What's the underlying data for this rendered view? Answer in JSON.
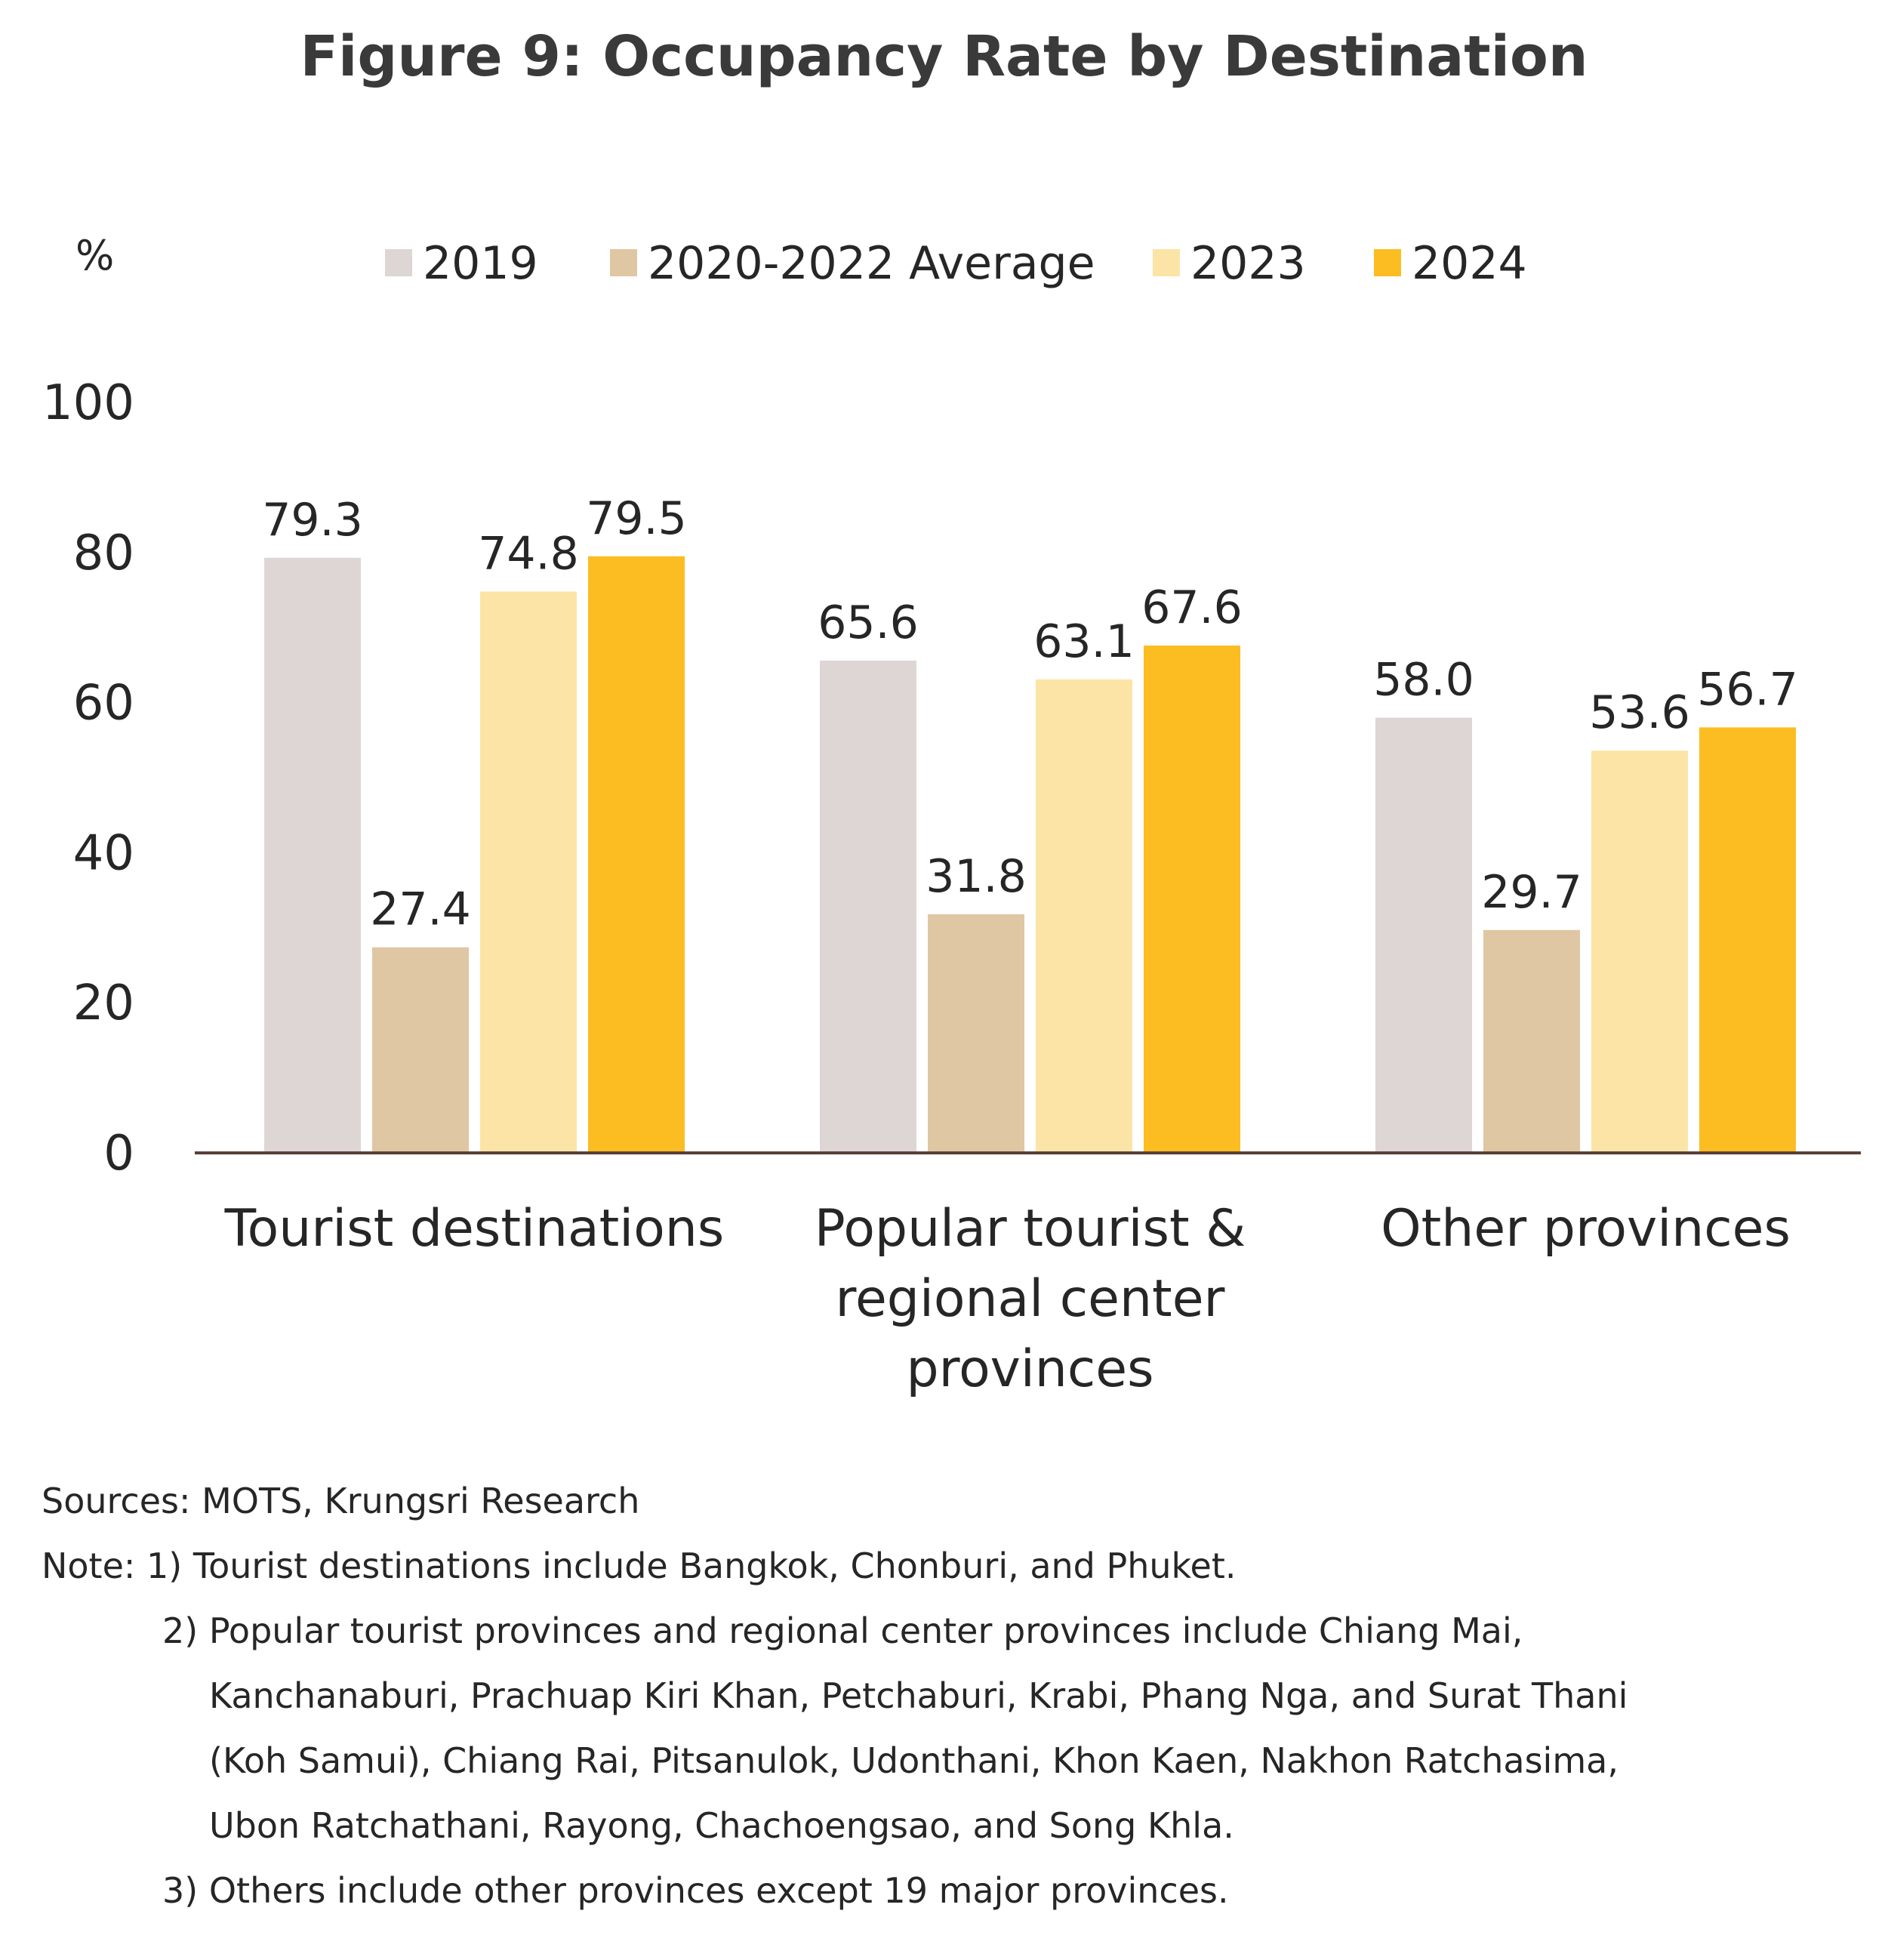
{
  "chart_data": {
    "type": "bar",
    "title": "Figure 9: Occupancy Rate by Destination",
    "ylabel": "%",
    "xlabel": "",
    "ylim": [
      0,
      100
    ],
    "yticks": [
      "0",
      "20",
      "40",
      "60",
      "80",
      "100"
    ],
    "grid": false,
    "legend_position": "top",
    "categories": [
      [
        "Tourist destinations"
      ],
      [
        "Popular tourist &",
        "regional center",
        "provinces"
      ],
      [
        "Other provinces"
      ]
    ],
    "series": [
      {
        "name": "2019",
        "color": "#ddd6d4",
        "values": [
          79.3,
          65.6,
          58.0
        ],
        "labels": [
          "79.3",
          "65.6",
          "58.0"
        ]
      },
      {
        "name": "2020-2022 Average",
        "color": "#dfc7a3",
        "values": [
          27.4,
          31.8,
          29.7
        ],
        "labels": [
          "27.4",
          "31.8",
          "29.7"
        ]
      },
      {
        "name": "2023",
        "color": "#fce4a6",
        "values": [
          74.8,
          63.1,
          53.6
        ],
        "labels": [
          "74.8",
          "63.1",
          "53.6"
        ]
      },
      {
        "name": "2024",
        "color": "#fbbd22",
        "values": [
          79.5,
          67.6,
          56.7
        ],
        "labels": [
          "79.5",
          "67.6",
          "56.7"
        ]
      }
    ],
    "axis_color": "#5a4038"
  },
  "footer": {
    "sources": "Sources: MOTS, Krungsri Research",
    "note_1": "Note: 1) Tourist destinations include Bangkok, Chonburi, and Phuket.",
    "note_2_line1": "2) Popular tourist provinces and regional center provinces include Chiang Mai,",
    "note_2_line2": "Kanchanaburi, Prachuap Kiri Khan, Petchaburi, Krabi, Phang Nga, and Surat Thani",
    "note_2_line3": "(Koh Samui), Chiang Rai, Pitsanulok, Udonthani, Khon Kaen, Nakhon Ratchasima,",
    "note_2_line4": "Ubon Ratchathani, Rayong, Chachoengsao, and Song Khla.",
    "note_3": "3) Others include other provinces except 19 major provinces."
  }
}
